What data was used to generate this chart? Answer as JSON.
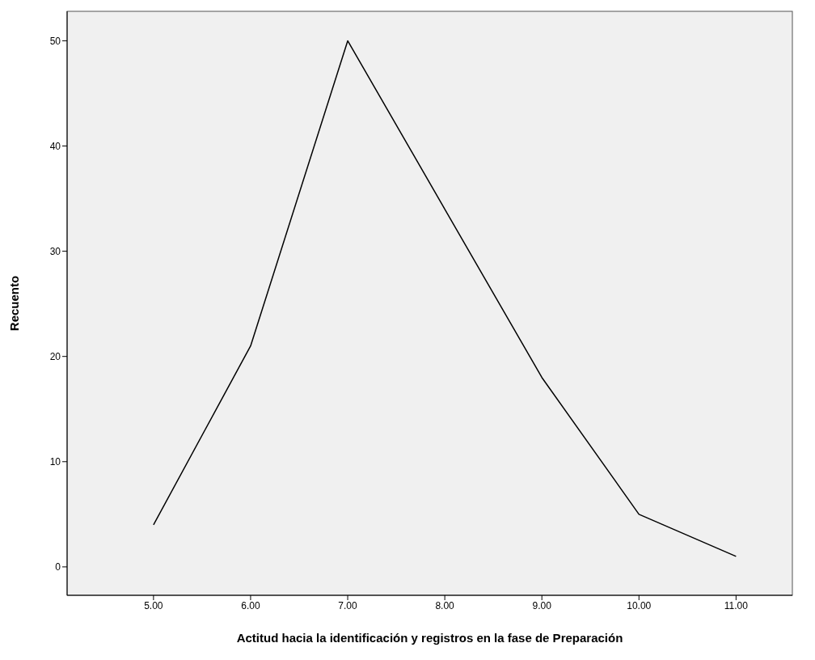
{
  "chart_data": {
    "type": "line",
    "xlabel": "Actitud hacia la identificación y registros en la fase de Preparación",
    "ylabel": "Recuento",
    "x": [
      5,
      6,
      7,
      8,
      9,
      10,
      11
    ],
    "series": [
      {
        "color": "#000000",
        "values": [
          4,
          21,
          50,
          34,
          18,
          5,
          1
        ]
      }
    ],
    "xlim": [
      4.11,
      11.58
    ],
    "xticks": [
      {
        "value": 5,
        "label": "5.00"
      },
      {
        "value": 6,
        "label": "6.00"
      },
      {
        "value": 7,
        "label": "7.00"
      },
      {
        "value": 8,
        "label": "8.00"
      },
      {
        "value": 9,
        "label": "9.00"
      },
      {
        "value": 10,
        "label": "10.00"
      },
      {
        "value": 11,
        "label": "11.00"
      }
    ],
    "ylim": [
      -2.7,
      52.8
    ],
    "yticks": [
      0,
      10,
      20,
      30,
      40,
      50
    ],
    "grid": false,
    "legend": false,
    "marker": "none",
    "line_style": "solid"
  }
}
